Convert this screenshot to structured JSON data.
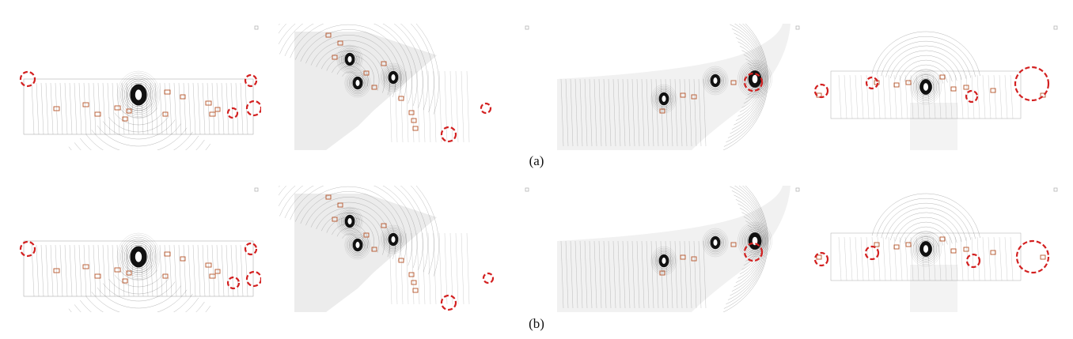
{
  "figure": {
    "captions": {
      "a": "(a)",
      "b": "(b)"
    },
    "rows": [
      {
        "id": "a",
        "panels": [
          "straight-road-scene",
          "y-junction-scene",
          "curved-road-scene",
          "t-junction-scene"
        ]
      },
      {
        "id": "b",
        "panels": [
          "straight-road-scene",
          "y-junction-scene",
          "curved-road-scene",
          "t-junction-scene"
        ]
      }
    ],
    "colors": {
      "highlight_circle": "#d32020",
      "box": "#b5542a",
      "points": "#111111"
    }
  }
}
